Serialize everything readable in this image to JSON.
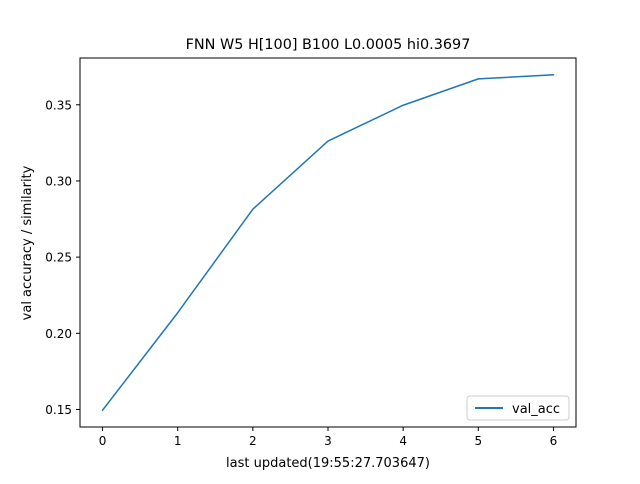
{
  "chart_data": {
    "type": "line",
    "title": "FNN W5 H[100] B100 L0.0005 hi0.3697",
    "xlabel": "last updated(19:55:27.703647)",
    "ylabel": "val accuracy / similarity",
    "x": [
      0,
      1,
      2,
      3,
      4,
      5,
      6
    ],
    "series": [
      {
        "name": "val_acc",
        "color": "#1f77b4",
        "values": [
          0.1495,
          0.2135,
          0.2815,
          0.3262,
          0.3497,
          0.367,
          0.3697
        ]
      }
    ],
    "xlim": [
      -0.3,
      6.3
    ],
    "ylim": [
      0.1385,
      0.3807
    ],
    "xticks": [
      0,
      1,
      2,
      3,
      4,
      5,
      6
    ],
    "xtick_labels": [
      "0",
      "1",
      "2",
      "3",
      "4",
      "5",
      "6"
    ],
    "yticks": [
      0.15,
      0.2,
      0.25,
      0.3,
      0.35
    ],
    "ytick_labels": [
      "0.15",
      "0.20",
      "0.25",
      "0.30",
      "0.35"
    ],
    "grid": false,
    "legend_position": "lower right"
  }
}
